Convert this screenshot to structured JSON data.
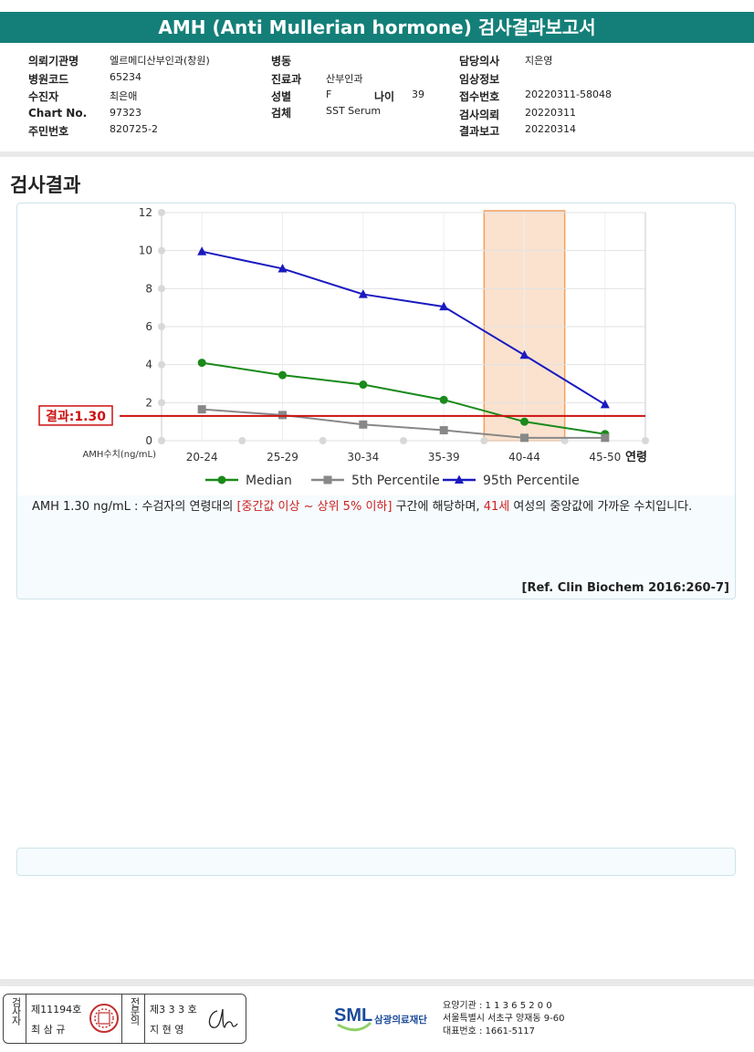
{
  "report": {
    "title": "AMH (Anti Mullerian hormone) 검사결과보고서"
  },
  "info": {
    "col1": [
      {
        "label": "의뢰기관명",
        "value": "엘르메디산부인과(창원)"
      },
      {
        "label": "병원코드",
        "value": "65234"
      },
      {
        "label": "수진자",
        "value": "최은애"
      },
      {
        "label": "Chart No.",
        "value": "97323"
      },
      {
        "label": "주민번호",
        "value": "820725-2"
      }
    ],
    "col2": [
      {
        "label": "병동",
        "value": ""
      },
      {
        "label": "진료과",
        "value": "산부인과"
      },
      {
        "label": "성별",
        "value": "F"
      },
      {
        "label": "검체",
        "value": "SST Serum"
      }
    ],
    "age": {
      "label": "나이",
      "value": "39"
    },
    "col3": [
      {
        "label": "담당의사",
        "value": "지은영"
      },
      {
        "label": "임상정보",
        "value": ""
      },
      {
        "label": "접수번호",
        "value": "20220311-58048"
      },
      {
        "label": "검사의뢰",
        "value": "20220311"
      },
      {
        "label": "결과보고",
        "value": "20220314"
      }
    ]
  },
  "section": {
    "title": "검사결과"
  },
  "chart_data": {
    "type": "line",
    "categories": [
      "20-24",
      "25-29",
      "30-34",
      "35-39",
      "40-44",
      "45-50"
    ],
    "xlabel": "연령",
    "ylabel": "AMH수치(ng/mL)",
    "ylim": [
      0,
      12
    ],
    "yticks": [
      0,
      2,
      4,
      6,
      8,
      10,
      12
    ],
    "series": [
      {
        "name": "Median",
        "color": "#1a8a1a",
        "marker": "circle",
        "values": [
          4.1,
          3.45,
          2.95,
          2.15,
          1.0,
          0.35
        ]
      },
      {
        "name": "5th Percentile",
        "color": "#888888",
        "marker": "square",
        "values": [
          1.65,
          1.35,
          0.85,
          0.55,
          0.15,
          0.15
        ]
      },
      {
        "name": "95th Percentile",
        "color": "#1a1ac0",
        "marker": "triangle",
        "values": [
          9.95,
          9.05,
          7.7,
          7.05,
          4.5,
          1.9
        ]
      }
    ],
    "result": {
      "label": "결과:1.30",
      "value": 1.3,
      "color": "#cc1111"
    },
    "highlight_category": "40-44",
    "highlight_color": "#f0a060",
    "grid": true,
    "legend": "bottom"
  },
  "comment": {
    "part1": "AMH  1.30 ng/mL : 수검자의 연령대의 ",
    "range": "[중간값 이상 ~ 상위 5% 이하]",
    "part2": "  구간에 해당하며, ",
    "age": "41세",
    "part3": " 여성의 중앙값에 가까운 수치입니다."
  },
  "reference": "[Ref. Clin Biochem 2016:260-7]",
  "signature": {
    "tester_label": "검사자",
    "tester_no": "제11194호",
    "tester_name": "최 삼 규",
    "doctor_label": "전문의",
    "doctor_no": "제3 3 3 호",
    "doctor_name": "지 현 영"
  },
  "org": {
    "logo": "SML",
    "name": "삼광의료재단",
    "line1": "요양기관 : 1 1 3 6 5 2 0 0",
    "line2": "서울특별시 서초구 양재동 9-60",
    "line3": "대표번호 : 1661-5117"
  }
}
